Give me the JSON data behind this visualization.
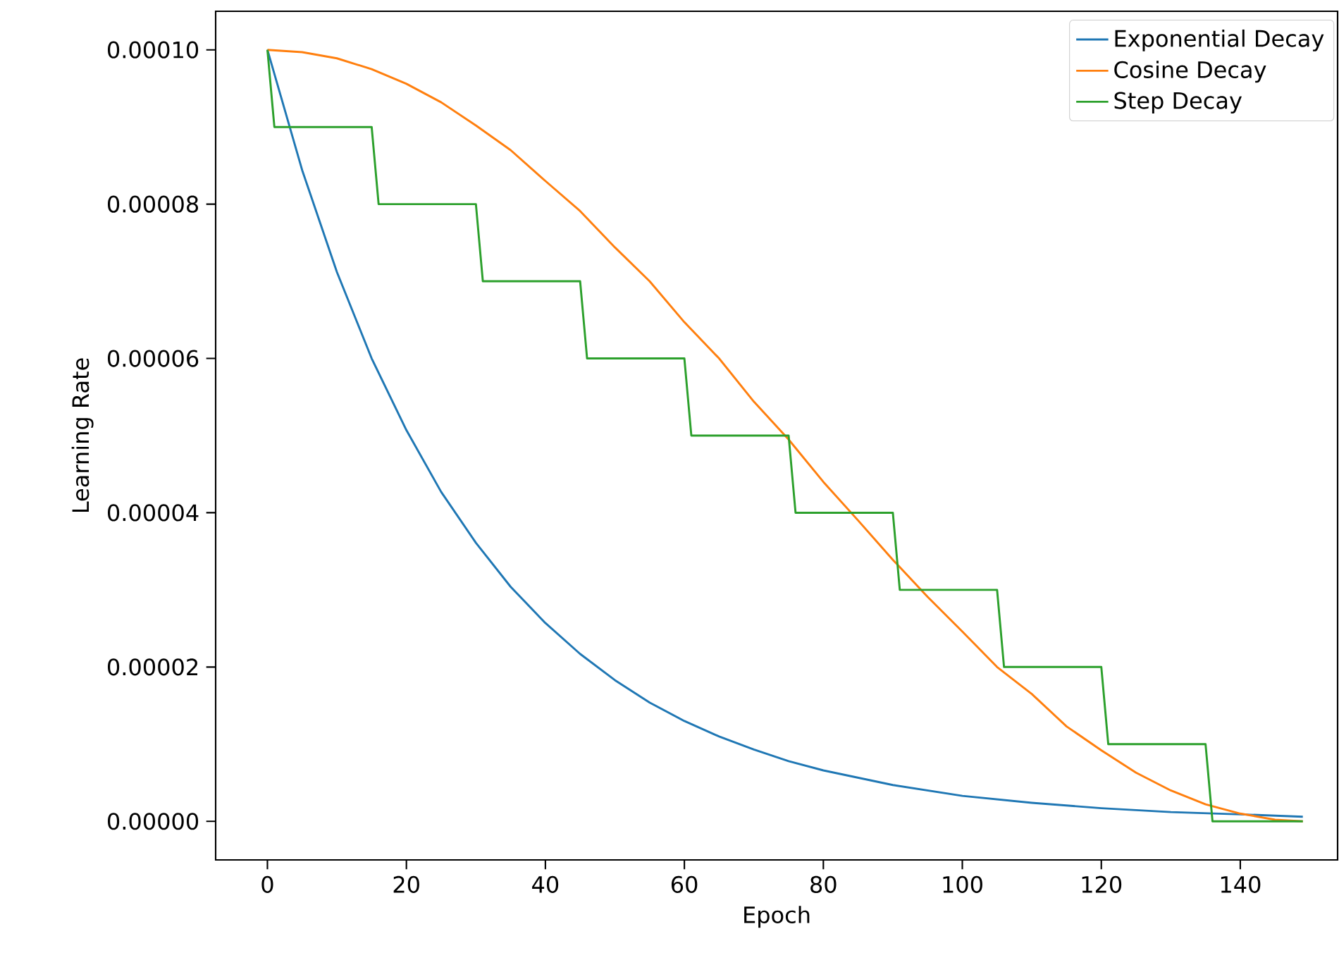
{
  "chart_data": {
    "type": "line",
    "xlabel": "Epoch",
    "ylabel": "Learning Rate",
    "xlim": [
      -7.45,
      154
    ],
    "xticks": [
      0,
      20,
      40,
      60,
      80,
      100,
      120,
      140
    ],
    "ylim": [
      -5e-06,
      0.000105
    ],
    "yticks": [
      {
        "value": 0,
        "label": "0.00000"
      },
      {
        "value": 2e-05,
        "label": "0.00002"
      },
      {
        "value": 4e-05,
        "label": "0.00004"
      },
      {
        "value": 6e-05,
        "label": "0.00006"
      },
      {
        "value": 8e-05,
        "label": "0.00008"
      },
      {
        "value": 0.0001,
        "label": "0.00010"
      }
    ],
    "legend": "top right",
    "grid": false,
    "marker": "none",
    "line_style": "solid",
    "series": [
      {
        "name": "Exponential Decay",
        "color": "#1f77b4",
        "x": [
          0,
          5,
          10,
          15,
          20,
          25,
          30,
          35,
          40,
          45,
          50,
          55,
          60,
          65,
          70,
          75,
          80,
          90,
          100,
          110,
          120,
          130,
          140,
          149
        ],
        "values": [
          0.0001,
          8.44e-05,
          7.12e-05,
          6e-05,
          5.07e-05,
          4.27e-05,
          3.61e-05,
          3.04e-05,
          2.57e-05,
          2.17e-05,
          1.83e-05,
          1.54e-05,
          1.3e-05,
          1.1e-05,
          9.3e-06,
          7.8e-06,
          6.6e-06,
          4.7e-06,
          3.3e-06,
          2.4e-06,
          1.7e-06,
          1.2e-06,
          9e-07,
          6e-07
        ]
      },
      {
        "name": "Cosine Decay",
        "color": "#ff7f0e",
        "x": [
          0,
          5,
          10,
          15,
          20,
          25,
          30,
          35,
          40,
          45,
          50,
          55,
          60,
          65,
          70,
          75,
          80,
          85,
          90,
          95,
          100,
          105,
          110,
          115,
          120,
          125,
          130,
          135,
          140,
          145,
          149
        ],
        "values": [
          0.0001,
          9.97e-05,
          9.89e-05,
          9.75e-05,
          9.56e-05,
          9.32e-05,
          9.02e-05,
          8.7e-05,
          8.3e-05,
          7.91e-05,
          7.44e-05,
          7e-05,
          6.47e-05,
          6e-05,
          5.44e-05,
          4.95e-05,
          4.4e-05,
          3.9e-05,
          3.39e-05,
          2.91e-05,
          2.46e-05,
          2e-05,
          1.65e-05,
          1.23e-05,
          9.2e-06,
          6.3e-06,
          4e-06,
          2.2e-06,
          1e-06,
          2e-07,
          0
        ]
      },
      {
        "name": "Step Decay",
        "color": "#2ca02c",
        "x": [
          0,
          1,
          15,
          16,
          30,
          31,
          45,
          46,
          60,
          61,
          75,
          76,
          90,
          91,
          105,
          106,
          120,
          121,
          135,
          136,
          149
        ],
        "values": [
          0.0001,
          9e-05,
          9e-05,
          8e-05,
          8e-05,
          7e-05,
          7e-05,
          6e-05,
          6e-05,
          5e-05,
          5e-05,
          4e-05,
          4e-05,
          3e-05,
          3e-05,
          2e-05,
          2e-05,
          1e-05,
          1e-05,
          0,
          0
        ]
      }
    ]
  }
}
